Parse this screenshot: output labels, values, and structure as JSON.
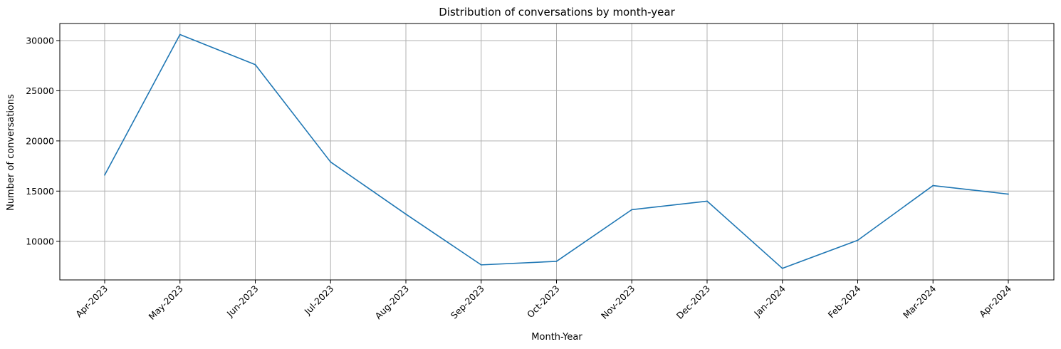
{
  "chart_data": {
    "type": "line",
    "title": "Distribution of conversations by month-year",
    "xlabel": "Month-Year",
    "ylabel": "Number of conversations",
    "categories": [
      "Apr-2023",
      "May-2023",
      "Jun-2023",
      "Jul-2023",
      "Aug-2023",
      "Sep-2023",
      "Oct-2023",
      "Nov-2023",
      "Dec-2023",
      "Jan-2024",
      "Feb-2024",
      "Mar-2024",
      "Apr-2024"
    ],
    "series": [
      {
        "values": [
          16600,
          30600,
          27600,
          17900,
          12700,
          7650,
          8000,
          13150,
          14000,
          7300,
          10100,
          15550,
          14700
        ],
        "color": "#1f77b4"
      }
    ],
    "ylim": [
      6150,
      31700
    ],
    "yticks": [
      10000,
      15000,
      20000,
      25000,
      30000
    ],
    "ytick_labels": [
      "10000",
      "15000",
      "20000",
      "25000",
      "30000"
    ],
    "grid": true,
    "grid_color": "#b0b0b0"
  }
}
